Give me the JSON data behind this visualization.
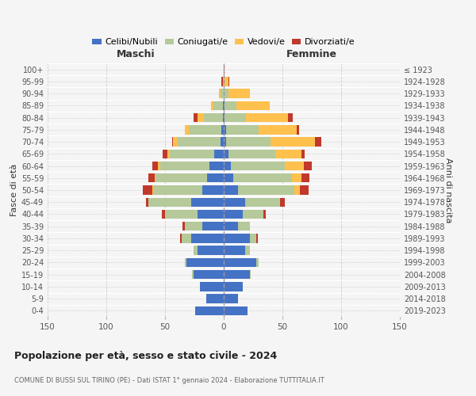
{
  "age_groups": [
    "100+",
    "95-99",
    "90-94",
    "85-89",
    "80-84",
    "75-79",
    "70-74",
    "65-69",
    "60-64",
    "55-59",
    "50-54",
    "45-49",
    "40-44",
    "35-39",
    "30-34",
    "25-29",
    "20-24",
    "15-19",
    "10-14",
    "5-9",
    "0-4"
  ],
  "birth_years": [
    "≤ 1923",
    "1924-1928",
    "1929-1933",
    "1934-1938",
    "1939-1943",
    "1944-1948",
    "1949-1953",
    "1954-1958",
    "1959-1963",
    "1964-1968",
    "1969-1973",
    "1974-1978",
    "1979-1983",
    "1984-1988",
    "1989-1993",
    "1994-1998",
    "1999-2003",
    "2004-2008",
    "2009-2013",
    "2014-2018",
    "2019-2023"
  ],
  "maschi": {
    "celibi": [
      0,
      0,
      0,
      1,
      1,
      2,
      3,
      8,
      12,
      14,
      18,
      28,
      22,
      18,
      28,
      22,
      32,
      26,
      20,
      15,
      24
    ],
    "coniugati": [
      0,
      1,
      3,
      8,
      16,
      28,
      36,
      38,
      42,
      44,
      42,
      36,
      28,
      15,
      8,
      4,
      1,
      1,
      0,
      0,
      0
    ],
    "vedovi": [
      0,
      0,
      1,
      2,
      5,
      3,
      4,
      2,
      2,
      1,
      1,
      0,
      0,
      0,
      0,
      0,
      0,
      0,
      0,
      0,
      0
    ],
    "divorziati": [
      0,
      1,
      0,
      0,
      4,
      0,
      1,
      4,
      5,
      5,
      8,
      2,
      3,
      2,
      1,
      0,
      0,
      0,
      0,
      0,
      0
    ]
  },
  "femmine": {
    "nubili": [
      0,
      0,
      0,
      1,
      1,
      2,
      2,
      4,
      6,
      8,
      12,
      18,
      16,
      12,
      22,
      18,
      28,
      22,
      16,
      12,
      20
    ],
    "coniugate": [
      0,
      1,
      4,
      10,
      18,
      28,
      38,
      40,
      46,
      50,
      48,
      30,
      18,
      10,
      6,
      4,
      2,
      1,
      0,
      0,
      0
    ],
    "vedove": [
      0,
      3,
      18,
      28,
      36,
      32,
      38,
      22,
      16,
      8,
      5,
      0,
      0,
      0,
      0,
      0,
      0,
      0,
      0,
      0,
      0
    ],
    "divorziate": [
      1,
      1,
      0,
      0,
      4,
      2,
      5,
      3,
      7,
      7,
      7,
      4,
      2,
      0,
      1,
      0,
      0,
      0,
      0,
      0,
      0
    ]
  },
  "colors": {
    "celibi": "#4472c4",
    "coniugati": "#b5c99a",
    "vedovi": "#ffc04d",
    "divorziati": "#c0392b"
  },
  "xlim": 150,
  "title": "Popolazione per età, sesso e stato civile - 2024",
  "subtitle": "COMUNE DI BUSSI SUL TIRINO (PE) - Dati ISTAT 1° gennaio 2024 - Elaborazione TUTTITALIA.IT",
  "ylabel_left": "Fasce di età",
  "ylabel_right": "Anni di nascita",
  "xlabel_left": "Maschi",
  "xlabel_right": "Femmine",
  "bg_color": "#f5f5f5",
  "grid_color": "#cccccc"
}
